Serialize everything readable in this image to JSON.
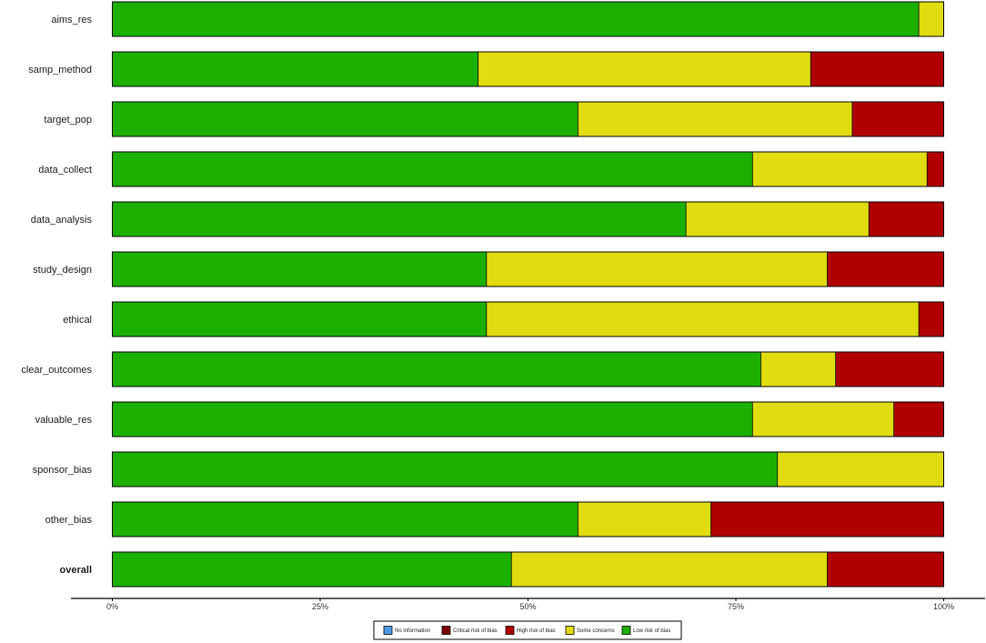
{
  "chart_data": {
    "type": "bar",
    "orientation": "horizontal",
    "stacked": true,
    "categories": [
      "aims_res",
      "samp_method",
      "target_pop",
      "data_collect",
      "data_analysis",
      "study_design",
      "ethical",
      "clear_outcomes",
      "valuable_res",
      "sponsor_bias",
      "other_bias",
      "overall"
    ],
    "bold_categories": [
      "overall"
    ],
    "series": [
      {
        "name": "Low risk of bias",
        "color": "#1cb100",
        "values": [
          97,
          44,
          56,
          77,
          69,
          45,
          45,
          78,
          77,
          80,
          56,
          48
        ]
      },
      {
        "name": "Some concerns",
        "color": "#e0dc10",
        "values": [
          3,
          40,
          33,
          21,
          22,
          41,
          52,
          9,
          17,
          20,
          16,
          38
        ]
      },
      {
        "name": "High risk of bias",
        "color": "#b00000",
        "values": [
          0,
          16,
          11,
          2,
          9,
          14,
          3,
          13,
          6,
          0,
          28,
          14
        ]
      }
    ],
    "x_ticks": [
      "0%",
      "25%",
      "50%",
      "75%",
      "100%"
    ],
    "xlim": [
      0,
      100
    ],
    "grid": false,
    "legend": {
      "placement": "bottom",
      "entries": [
        {
          "name": "No information",
          "color": "#4d9be6"
        },
        {
          "name": "Critical risk of bias",
          "color": "#7a0000"
        },
        {
          "name": "High risk of bias",
          "color": "#b00000"
        },
        {
          "name": "Some concerns",
          "color": "#e0dc10"
        },
        {
          "name": "Low risk of bias",
          "color": "#1cb100"
        }
      ]
    }
  }
}
